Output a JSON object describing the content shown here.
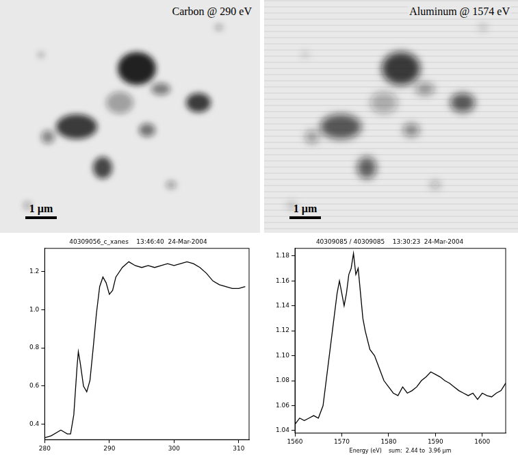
{
  "images": [
    {
      "title": "Carbon @ 290 eV",
      "scale_bar": "1 µm"
    },
    {
      "title": "Aluminum @ 1574 eV",
      "scale_bar": "1 µm"
    }
  ],
  "chart_data": [
    {
      "type": "line",
      "title": "40309056_c_xanes    13:46:40  24-Mar-2004",
      "x": [
        280,
        281,
        282,
        282.5,
        283,
        283.5,
        284,
        284.5,
        285,
        285.2,
        285.5,
        286,
        286.5,
        287,
        287.5,
        288,
        288.5,
        289,
        289.5,
        290,
        290.5,
        291,
        292,
        293,
        294,
        295,
        296,
        297,
        298,
        299,
        300,
        301,
        302,
        303,
        304,
        305,
        306,
        307,
        308,
        309,
        310,
        311
      ],
      "values": [
        0.33,
        0.34,
        0.36,
        0.37,
        0.36,
        0.35,
        0.35,
        0.45,
        0.7,
        0.78,
        0.72,
        0.6,
        0.57,
        0.63,
        0.8,
        0.98,
        1.12,
        1.17,
        1.14,
        1.08,
        1.1,
        1.17,
        1.22,
        1.25,
        1.23,
        1.22,
        1.23,
        1.22,
        1.23,
        1.24,
        1.23,
        1.24,
        1.25,
        1.24,
        1.22,
        1.19,
        1.15,
        1.13,
        1.12,
        1.11,
        1.11,
        1.12
      ],
      "color": "#000000",
      "xlim": [
        280,
        311.6
      ],
      "xticks": [
        280,
        290,
        300,
        310
      ],
      "ylim": [
        0.32,
        1.32
      ],
      "yticks": [
        0.4,
        0.6,
        0.8,
        {
          "value": 1.0,
          "label": "1.0"
        },
        1.2
      ],
      "grid": false
    },
    {
      "type": "line",
      "title": "40309085 / 40309085    13:30:23  24-Mar-2004",
      "x_label": "Energy (eV)    sum:  2.44 to  3.96 µm",
      "x": [
        1560,
        1561,
        1562,
        1563,
        1564,
        1565,
        1566,
        1567,
        1568,
        1569,
        1569.5,
        1570,
        1570.5,
        1571,
        1571.5,
        1572,
        1572.5,
        1573,
        1573.5,
        1574,
        1574.5,
        1575,
        1576,
        1577,
        1578,
        1579,
        1580,
        1581,
        1582,
        1583,
        1584,
        1585,
        1586,
        1587,
        1588,
        1589,
        1590,
        1591,
        1592,
        1593,
        1594,
        1595,
        1596,
        1597,
        1598,
        1599,
        1600,
        1601,
        1602,
        1603,
        1604,
        1605
      ],
      "values": [
        1.045,
        1.05,
        1.048,
        1.05,
        1.052,
        1.05,
        1.06,
        1.09,
        1.12,
        1.15,
        1.16,
        1.15,
        1.14,
        1.15,
        1.165,
        1.17,
        1.182,
        1.165,
        1.17,
        1.15,
        1.13,
        1.12,
        1.105,
        1.1,
        1.09,
        1.08,
        1.075,
        1.07,
        1.068,
        1.075,
        1.07,
        1.072,
        1.075,
        1.08,
        1.083,
        1.087,
        1.085,
        1.083,
        1.08,
        1.078,
        1.075,
        1.072,
        1.07,
        1.068,
        1.07,
        1.065,
        1.07,
        1.068,
        1.067,
        1.07,
        1.072,
        1.078
      ],
      "color": "#000000",
      "xlim": [
        1560,
        1605
      ],
      "xticks": [
        1560,
        1570,
        1580,
        1590,
        1600
      ],
      "ylim": [
        1.038,
        1.186
      ],
      "yticks": [
        1.04,
        1.06,
        1.08,
        {
          "value": 1.1,
          "label": "1.10"
        },
        1.12,
        1.14,
        1.16,
        1.18
      ],
      "grid": false
    }
  ]
}
